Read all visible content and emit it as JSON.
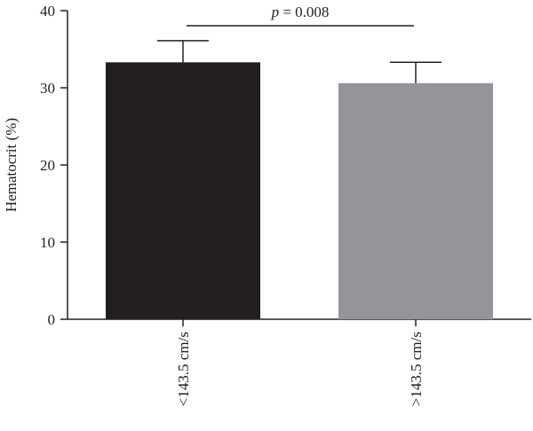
{
  "chart_data": {
    "type": "bar",
    "categories": [
      "<143.5 cm/s",
      ">143.5 cm/s"
    ],
    "values": [
      33.3,
      30.6
    ],
    "errors": [
      2.8,
      2.7
    ],
    "bar_colors": [
      "#231f20",
      "#939598"
    ],
    "ylabel": "Hematocrit (%)",
    "ylim": [
      0,
      40
    ],
    "yticks": [
      0,
      10,
      20,
      30,
      40
    ],
    "grid": false,
    "annotation": {
      "p_symbol": "p",
      "p_text": " = 0.008"
    }
  }
}
